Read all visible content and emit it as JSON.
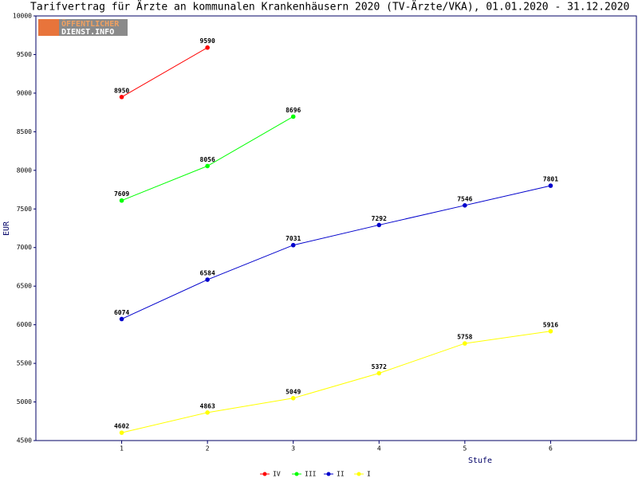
{
  "chart_data": {
    "type": "line",
    "title": "Tarifvertrag für Ärzte an kommunalen Krankenhäusern 2020 (TV-Ärzte/VKA), 01.01.2020 - 31.12.2020",
    "logo": [
      "ÖFFENTLICHER",
      "DIENST.INFO"
    ],
    "xlabel": "Stufe",
    "ylabel": "EUR",
    "x": [
      1,
      2,
      3,
      4,
      5,
      6
    ],
    "xlim": [
      0,
      7
    ],
    "xticks": [
      1,
      2,
      3,
      4,
      5,
      6
    ],
    "ylim": [
      4500,
      10000
    ],
    "yticks": [
      4500,
      5000,
      5500,
      6000,
      6500,
      7000,
      7500,
      8000,
      8500,
      9000,
      9500,
      10000
    ],
    "grid": false,
    "legend": "bottom",
    "series": [
      {
        "name": "IV",
        "color": "#ff0000",
        "values": [
          8950,
          9590,
          null,
          null,
          null,
          null
        ]
      },
      {
        "name": "III",
        "color": "#00ff00",
        "values": [
          7609,
          8056,
          8696,
          null,
          null,
          null
        ]
      },
      {
        "name": "II",
        "color": "#0000cc",
        "values": [
          6074,
          6584,
          7031,
          7292,
          7546,
          7801
        ]
      },
      {
        "name": "I",
        "color": "#ffff00",
        "values": [
          4602,
          4863,
          5049,
          5372,
          5758,
          5916
        ]
      }
    ]
  }
}
